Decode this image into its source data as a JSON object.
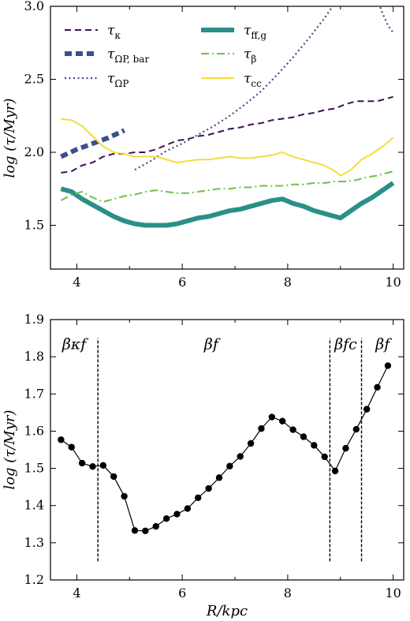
{
  "chart_data": [
    {
      "type": "line",
      "ylabel": "log (τ/Myr)",
      "xlabel": "",
      "xlim": [
        3.5,
        10.2
      ],
      "ylim": [
        1.2,
        3.0
      ],
      "xticks": [
        4,
        6,
        8,
        10
      ],
      "yticks": [
        1.5,
        2.0,
        2.5,
        3.0
      ],
      "xtick_labels": [
        "4",
        "6",
        "8",
        "10"
      ],
      "ytick_labels": [
        "1.5",
        "2.0",
        "2.5",
        "3.0"
      ],
      "legend_position": "top",
      "series": [
        {
          "name": "τκ",
          "color": "#3d1155",
          "style": "dashed",
          "x": [
            3.7,
            3.9,
            4.1,
            4.3,
            4.5,
            4.7,
            4.9,
            5.1,
            5.3,
            5.5,
            5.7,
            5.9,
            6.1,
            6.3,
            6.5,
            6.7,
            6.9,
            7.1,
            7.3,
            7.5,
            7.7,
            7.9,
            8.1,
            8.3,
            8.5,
            8.7,
            8.9,
            9.1,
            9.3,
            9.5,
            9.7,
            9.9,
            10.0
          ],
          "y": [
            1.86,
            1.87,
            1.91,
            1.93,
            1.97,
            1.99,
            1.99,
            2.0,
            2.0,
            2.02,
            2.05,
            2.08,
            2.09,
            2.11,
            2.12,
            2.14,
            2.16,
            2.17,
            2.19,
            2.2,
            2.22,
            2.23,
            2.24,
            2.26,
            2.27,
            2.29,
            2.3,
            2.33,
            2.35,
            2.35,
            2.35,
            2.37,
            2.38
          ]
        },
        {
          "name": "τΩP, bar",
          "color": "#3a4f8c",
          "style": "thick-dashed",
          "x": [
            3.7,
            4.0,
            4.3,
            4.6,
            4.9
          ],
          "y": [
            1.97,
            2.02,
            2.06,
            2.1,
            2.15
          ]
        },
        {
          "name": "τΩP",
          "color": "#3a4f8c",
          "style": "dotted",
          "x": [
            5.1,
            5.4,
            5.7,
            6.0,
            6.3,
            6.6,
            6.9,
            7.2,
            7.5,
            7.8,
            8.1,
            8.4,
            8.7,
            9.0,
            9.1
          ],
          "y": [
            1.88,
            1.94,
            2.01,
            2.06,
            2.12,
            2.18,
            2.25,
            2.33,
            2.42,
            2.53,
            2.65,
            2.78,
            2.92,
            3.08,
            3.15
          ]
        },
        {
          "name": "τΩP",
          "color": "#3a4f8c",
          "style": "dotted",
          "x": [
            9.7,
            9.8,
            9.9,
            10.0
          ],
          "y": [
            3.05,
            2.95,
            2.87,
            2.82
          ]
        },
        {
          "name": "τff,g",
          "color": "#2a9087",
          "style": "thick-solid",
          "x": [
            3.7,
            3.9,
            4.1,
            4.3,
            4.5,
            4.7,
            4.9,
            5.1,
            5.3,
            5.5,
            5.7,
            5.9,
            6.1,
            6.3,
            6.5,
            6.7,
            6.9,
            7.1,
            7.3,
            7.5,
            7.7,
            7.9,
            8.1,
            8.3,
            8.5,
            8.7,
            8.9,
            9.0,
            9.2,
            9.4,
            9.6,
            9.8,
            10.0
          ],
          "y": [
            1.75,
            1.73,
            1.68,
            1.64,
            1.6,
            1.56,
            1.53,
            1.51,
            1.5,
            1.5,
            1.5,
            1.51,
            1.53,
            1.55,
            1.56,
            1.58,
            1.6,
            1.61,
            1.63,
            1.65,
            1.67,
            1.68,
            1.65,
            1.63,
            1.6,
            1.58,
            1.56,
            1.55,
            1.6,
            1.65,
            1.69,
            1.74,
            1.79
          ]
        },
        {
          "name": "τβ",
          "color": "#6cc24a",
          "style": "dashdot",
          "x": [
            3.7,
            3.9,
            4.1,
            4.3,
            4.5,
            4.7,
            4.9,
            5.1,
            5.3,
            5.5,
            5.7,
            5.9,
            6.1,
            6.3,
            6.5,
            6.7,
            6.9,
            7.1,
            7.3,
            7.5,
            7.7,
            7.9,
            8.1,
            8.3,
            8.5,
            8.7,
            8.9,
            9.1,
            9.3,
            9.5,
            9.7,
            9.9,
            10.0
          ],
          "y": [
            1.67,
            1.71,
            1.73,
            1.69,
            1.66,
            1.68,
            1.7,
            1.71,
            1.73,
            1.74,
            1.73,
            1.72,
            1.72,
            1.73,
            1.74,
            1.75,
            1.75,
            1.76,
            1.76,
            1.77,
            1.77,
            1.77,
            1.78,
            1.78,
            1.79,
            1.79,
            1.8,
            1.8,
            1.81,
            1.83,
            1.84,
            1.86,
            1.87
          ]
        },
        {
          "name": "τcc",
          "color": "#f5dc3c",
          "style": "solid",
          "x": [
            3.7,
            3.9,
            4.1,
            4.3,
            4.5,
            4.7,
            4.9,
            5.1,
            5.3,
            5.5,
            5.7,
            5.9,
            6.1,
            6.3,
            6.5,
            6.7,
            6.9,
            7.1,
            7.3,
            7.5,
            7.7,
            7.9,
            8.1,
            8.3,
            8.5,
            8.7,
            8.9,
            9.0,
            9.2,
            9.4,
            9.6,
            9.8,
            10.0
          ],
          "y": [
            2.23,
            2.22,
            2.18,
            2.11,
            2.04,
            2.0,
            1.99,
            1.97,
            1.97,
            1.97,
            1.95,
            1.93,
            1.94,
            1.95,
            1.95,
            1.96,
            1.97,
            1.96,
            1.96,
            1.97,
            1.98,
            2.0,
            1.97,
            1.95,
            1.93,
            1.91,
            1.87,
            1.84,
            1.88,
            1.95,
            1.99,
            2.04,
            2.1
          ]
        }
      ]
    },
    {
      "type": "line",
      "xlabel": "R/kpc",
      "ylabel": "log (τ/Myr)",
      "xlim": [
        3.5,
        10.2
      ],
      "ylim": [
        1.2,
        1.9
      ],
      "xticks": [
        4,
        6,
        8,
        10
      ],
      "yticks": [
        1.2,
        1.3,
        1.4,
        1.5,
        1.6,
        1.7,
        1.8,
        1.9
      ],
      "xtick_labels": [
        "4",
        "6",
        "8",
        "10"
      ],
      "ytick_labels": [
        "1.2",
        "1.3",
        "1.4",
        "1.5",
        "1.6",
        "1.7",
        "1.8",
        "1.9"
      ],
      "series": [
        {
          "color": "#000000",
          "style": "solid-markers",
          "x": [
            3.7,
            3.9,
            4.1,
            4.3,
            4.5,
            4.7,
            4.9,
            5.1,
            5.3,
            5.5,
            5.7,
            5.9,
            6.1,
            6.3,
            6.5,
            6.7,
            6.9,
            7.1,
            7.3,
            7.5,
            7.7,
            7.9,
            8.1,
            8.3,
            8.5,
            8.7,
            8.9,
            9.1,
            9.3,
            9.5,
            9.7,
            9.9
          ],
          "y": [
            1.577,
            1.557,
            1.514,
            1.505,
            1.508,
            1.478,
            1.425,
            1.333,
            1.332,
            1.344,
            1.365,
            1.377,
            1.392,
            1.421,
            1.446,
            1.475,
            1.506,
            1.532,
            1.567,
            1.607,
            1.638,
            1.627,
            1.604,
            1.585,
            1.562,
            1.531,
            1.493,
            1.554,
            1.605,
            1.659,
            1.718,
            1.776
          ]
        }
      ],
      "vlines": [
        4.4,
        8.8,
        9.4
      ],
      "regime_labels": [
        {
          "text": "βκf",
          "x": 3.95
        },
        {
          "text": "βf",
          "x": 6.55
        },
        {
          "text": "βfc",
          "x": 9.1
        },
        {
          "text": "βf",
          "x": 9.8
        }
      ]
    }
  ]
}
